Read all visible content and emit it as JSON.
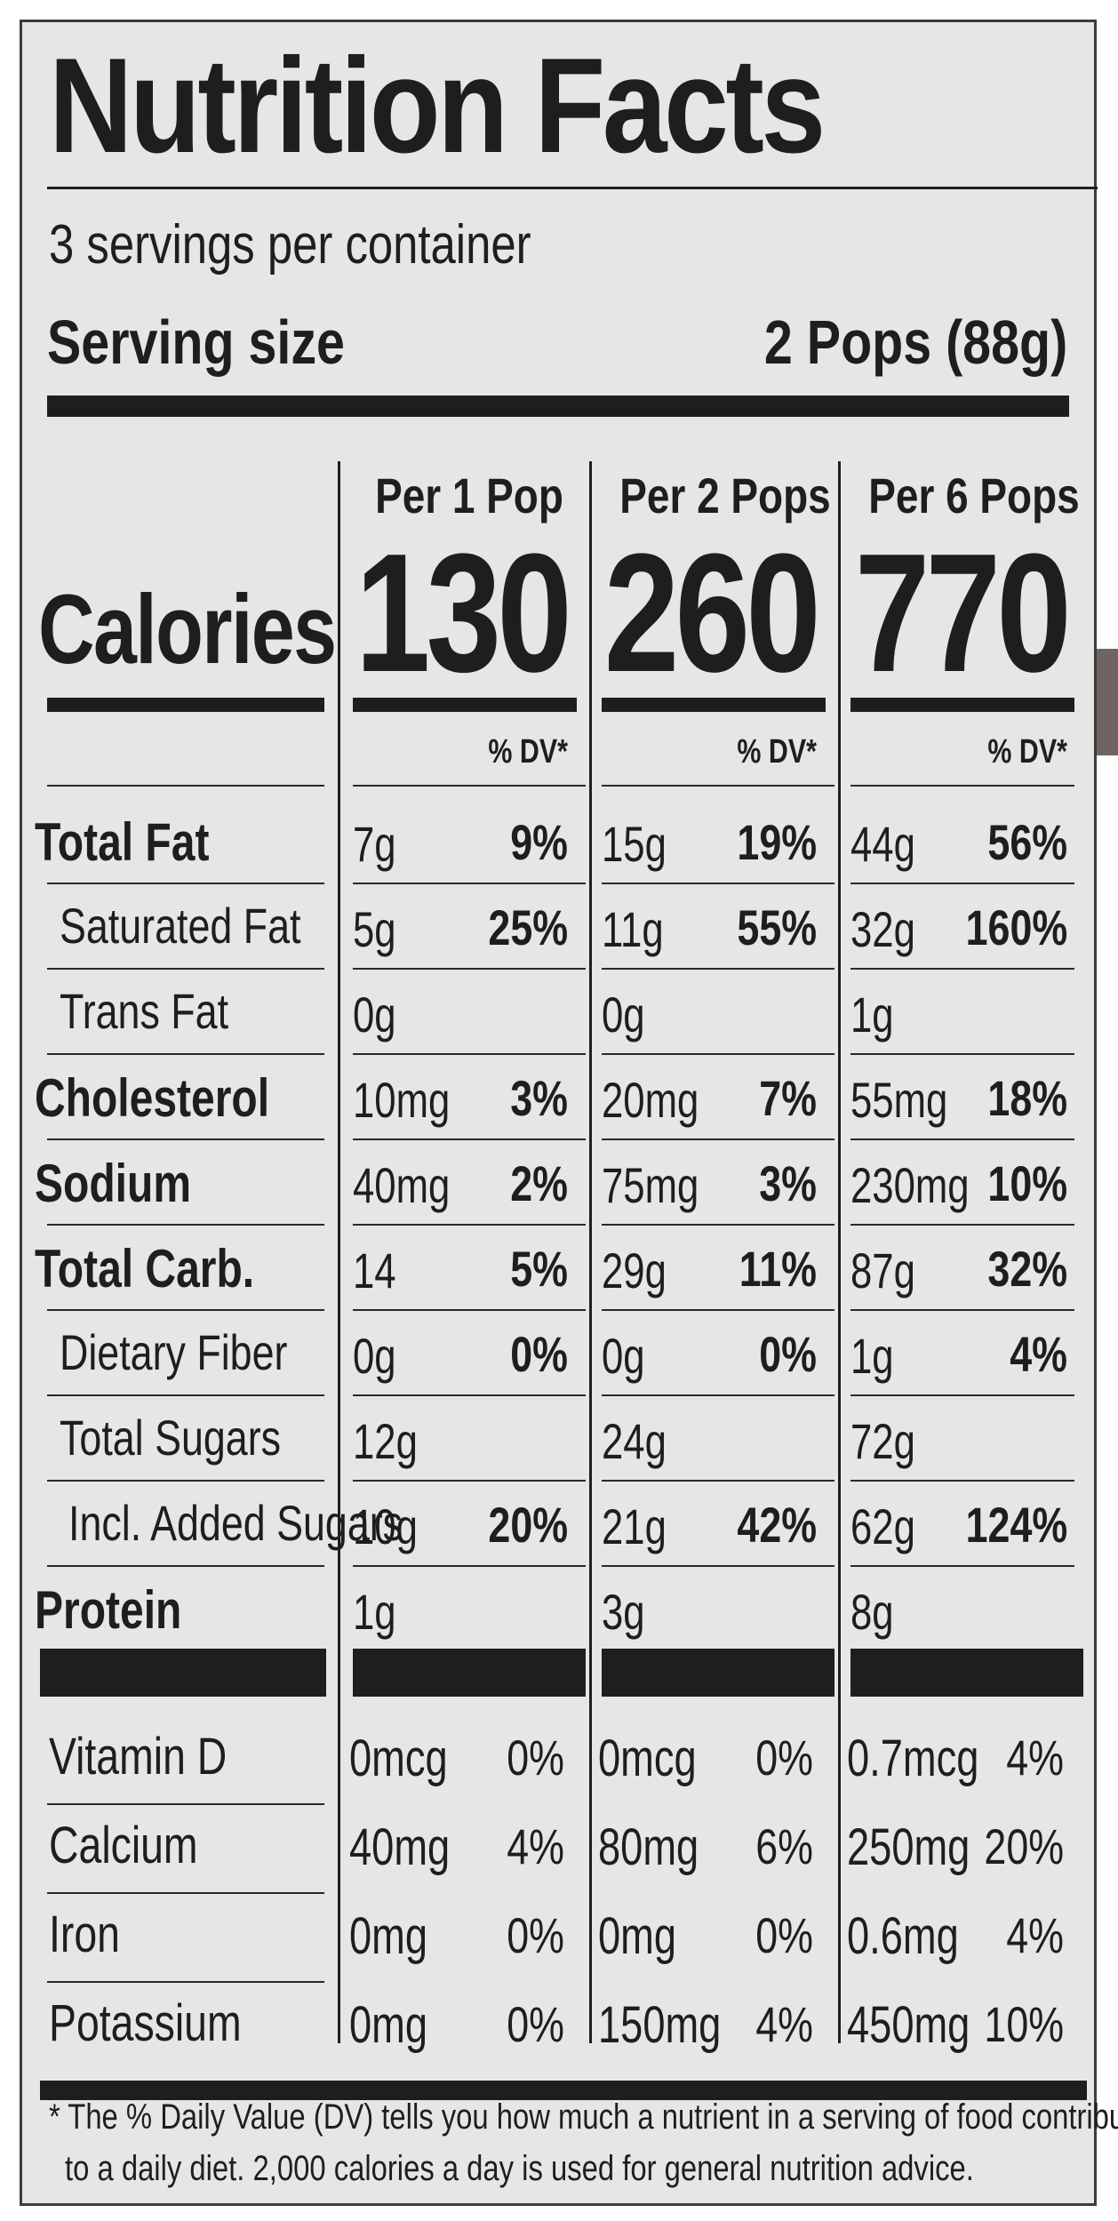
{
  "title": "Nutrition Facts",
  "servings_per_container": "3 servings per container",
  "serving_size": {
    "label": "Serving size",
    "value": "2 Pops (88g)"
  },
  "columns": [
    {
      "header": "Per 1 Pop",
      "calories": "130",
      "dv_header": "% DV*"
    },
    {
      "header": "Per 2 Pops",
      "calories": "260",
      "dv_header": "% DV*"
    },
    {
      "header": "Per 6 Pops",
      "calories": "770",
      "dv_header": "% DV*"
    }
  ],
  "calories_label": "Calories",
  "nutrients": [
    {
      "label": "Total Fat",
      "bold": true,
      "indent": 0,
      "values": [
        {
          "amt": "7g",
          "dv": "9%"
        },
        {
          "amt": "15g",
          "dv": "19%"
        },
        {
          "amt": "44g",
          "dv": "56%"
        }
      ]
    },
    {
      "label": "Saturated Fat",
      "bold": false,
      "indent": 1,
      "values": [
        {
          "amt": "5g",
          "dv": "25%"
        },
        {
          "amt": "11g",
          "dv": "55%"
        },
        {
          "amt": "32g",
          "dv": "160%"
        }
      ]
    },
    {
      "label": "Trans Fat",
      "bold": false,
      "indent": 1,
      "values": [
        {
          "amt": "0g",
          "dv": ""
        },
        {
          "amt": "0g",
          "dv": ""
        },
        {
          "amt": "1g",
          "dv": ""
        }
      ]
    },
    {
      "label": "Cholesterol",
      "bold": true,
      "indent": 0,
      "values": [
        {
          "amt": "10mg",
          "dv": "3%"
        },
        {
          "amt": "20mg",
          "dv": "7%"
        },
        {
          "amt": "55mg",
          "dv": "18%"
        }
      ]
    },
    {
      "label": "Sodium",
      "bold": true,
      "indent": 0,
      "values": [
        {
          "amt": "40mg",
          "dv": "2%"
        },
        {
          "amt": "75mg",
          "dv": "3%"
        },
        {
          "amt": "230mg",
          "dv": "10%"
        }
      ]
    },
    {
      "label": "Total Carb.",
      "bold": true,
      "indent": 0,
      "values": [
        {
          "amt": "14",
          "dv": "5%"
        },
        {
          "amt": "29g",
          "dv": "11%"
        },
        {
          "amt": "87g",
          "dv": "32%"
        }
      ]
    },
    {
      "label": "Dietary Fiber",
      "bold": false,
      "indent": 1,
      "values": [
        {
          "amt": "0g",
          "dv": "0%"
        },
        {
          "amt": "0g",
          "dv": "0%"
        },
        {
          "amt": "1g",
          "dv": "4%"
        }
      ]
    },
    {
      "label": "Total Sugars",
      "bold": false,
      "indent": 1,
      "values": [
        {
          "amt": "12g",
          "dv": ""
        },
        {
          "amt": "24g",
          "dv": ""
        },
        {
          "amt": "72g",
          "dv": ""
        }
      ]
    },
    {
      "label": "Incl. Added Sugars",
      "bold": false,
      "indent": 2,
      "values": [
        {
          "amt": "10g",
          "dv": "20%"
        },
        {
          "amt": "21g",
          "dv": "42%"
        },
        {
          "amt": "62g",
          "dv": "124%"
        }
      ]
    },
    {
      "label": "Protein",
      "bold": true,
      "indent": 0,
      "values": [
        {
          "amt": "1g",
          "dv": ""
        },
        {
          "amt": "3g",
          "dv": ""
        },
        {
          "amt": "8g",
          "dv": ""
        }
      ]
    }
  ],
  "vitamins": [
    {
      "label": "Vitamin D",
      "values": [
        {
          "amt": "0mcg",
          "dv": "0%"
        },
        {
          "amt": "0mcg",
          "dv": "0%"
        },
        {
          "amt": "0.7mcg",
          "dv": "4%"
        }
      ]
    },
    {
      "label": "Calcium",
      "values": [
        {
          "amt": "40mg",
          "dv": "4%"
        },
        {
          "amt": "80mg",
          "dv": "6%"
        },
        {
          "amt": "250mg",
          "dv": "20%"
        }
      ]
    },
    {
      "label": "Iron",
      "values": [
        {
          "amt": "0mg",
          "dv": "0%"
        },
        {
          "amt": "0mg",
          "dv": "0%"
        },
        {
          "amt": "0.6mg",
          "dv": "4%"
        }
      ]
    },
    {
      "label": "Potassium",
      "values": [
        {
          "amt": "0mg",
          "dv": "0%"
        },
        {
          "amt": "150mg",
          "dv": "4%"
        },
        {
          "amt": "450mg",
          "dv": "10%"
        }
      ]
    }
  ],
  "footnote": {
    "line1": "* The % Daily Value (DV) tells you how much a nutrient in a serving of food contributes",
    "line2": "to a daily diet. 2,000 calories a day is used for general nutrition advice."
  }
}
